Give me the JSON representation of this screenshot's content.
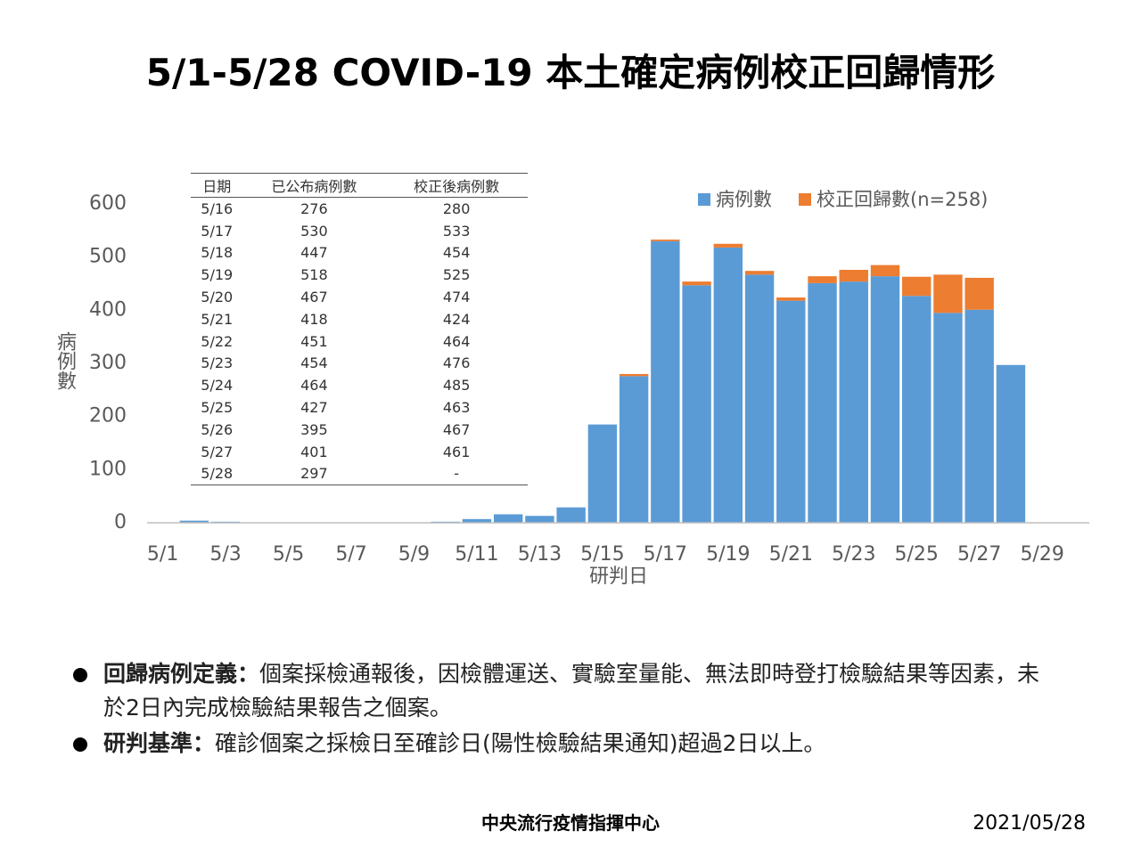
{
  "title": "5/1-5/28 COVID-19 本土確定病例校正回歸情形",
  "chart_data": {
    "type": "stacked-bar",
    "y_label": "病例數",
    "x_label": "研判日",
    "categories": [
      "5/1",
      null,
      "5/3",
      null,
      "5/5",
      null,
      "5/7",
      null,
      "5/9",
      null,
      "5/11",
      null,
      "5/13",
      null,
      "5/15",
      null,
      "5/17",
      null,
      "5/19",
      null,
      "5/21",
      null,
      "5/23",
      null,
      "5/25",
      null,
      "5/27",
      null,
      "5/29",
      null
    ],
    "series": [
      {
        "name": "病例數",
        "color": "#5b9bd5",
        "values": [
          0,
          4,
          2,
          0,
          0,
          0,
          0,
          0,
          0,
          2,
          7,
          16,
          13,
          29,
          185,
          276,
          530,
          447,
          518,
          467,
          418,
          451,
          454,
          464,
          427,
          395,
          401,
          297,
          null,
          null
        ]
      },
      {
        "name": "校正回歸數(n=258)",
        "color": "#ed7d31",
        "values": [
          null,
          null,
          null,
          null,
          null,
          null,
          null,
          null,
          null,
          null,
          null,
          null,
          null,
          null,
          null,
          4,
          3,
          7,
          7,
          7,
          6,
          13,
          22,
          21,
          36,
          72,
          60,
          null,
          null,
          null
        ]
      }
    ],
    "ylim": [
      0,
      600
    ],
    "yticks": [
      0,
      100,
      200,
      300,
      400,
      500,
      600
    ],
    "grid": false,
    "legend": "top-right"
  },
  "table": {
    "header": [
      "日期",
      "已公布病例數",
      "校正後病例數"
    ],
    "rows": [
      [
        "5/16",
        276,
        280
      ],
      [
        "5/17",
        530,
        533
      ],
      [
        "5/18",
        447,
        454
      ],
      [
        "5/19",
        518,
        525
      ],
      [
        "5/20",
        467,
        474
      ],
      [
        "5/21",
        418,
        424
      ],
      [
        "5/22",
        451,
        464
      ],
      [
        "5/23",
        454,
        476
      ],
      [
        "5/24",
        464,
        485
      ],
      [
        "5/25",
        427,
        463
      ],
      [
        "5/26",
        395,
        467
      ],
      [
        "5/27",
        401,
        461
      ],
      [
        "5/28",
        297,
        "-"
      ]
    ]
  },
  "bullets": [
    {
      "term": "回歸病例定義：",
      "text": "個案採檢通報後，因檢體運送、實驗室量能、無法即時登打檢驗結果等因素，未於2日內完成檢驗結果報告之個案。"
    },
    {
      "term": "研判基準：",
      "text": "確診個案之採檢日至確診日(陽性檢驗結果通知)超過2日以上。"
    }
  ],
  "footer": {
    "org": "中央流行疫情指揮中心",
    "date": "2021/05/28"
  }
}
